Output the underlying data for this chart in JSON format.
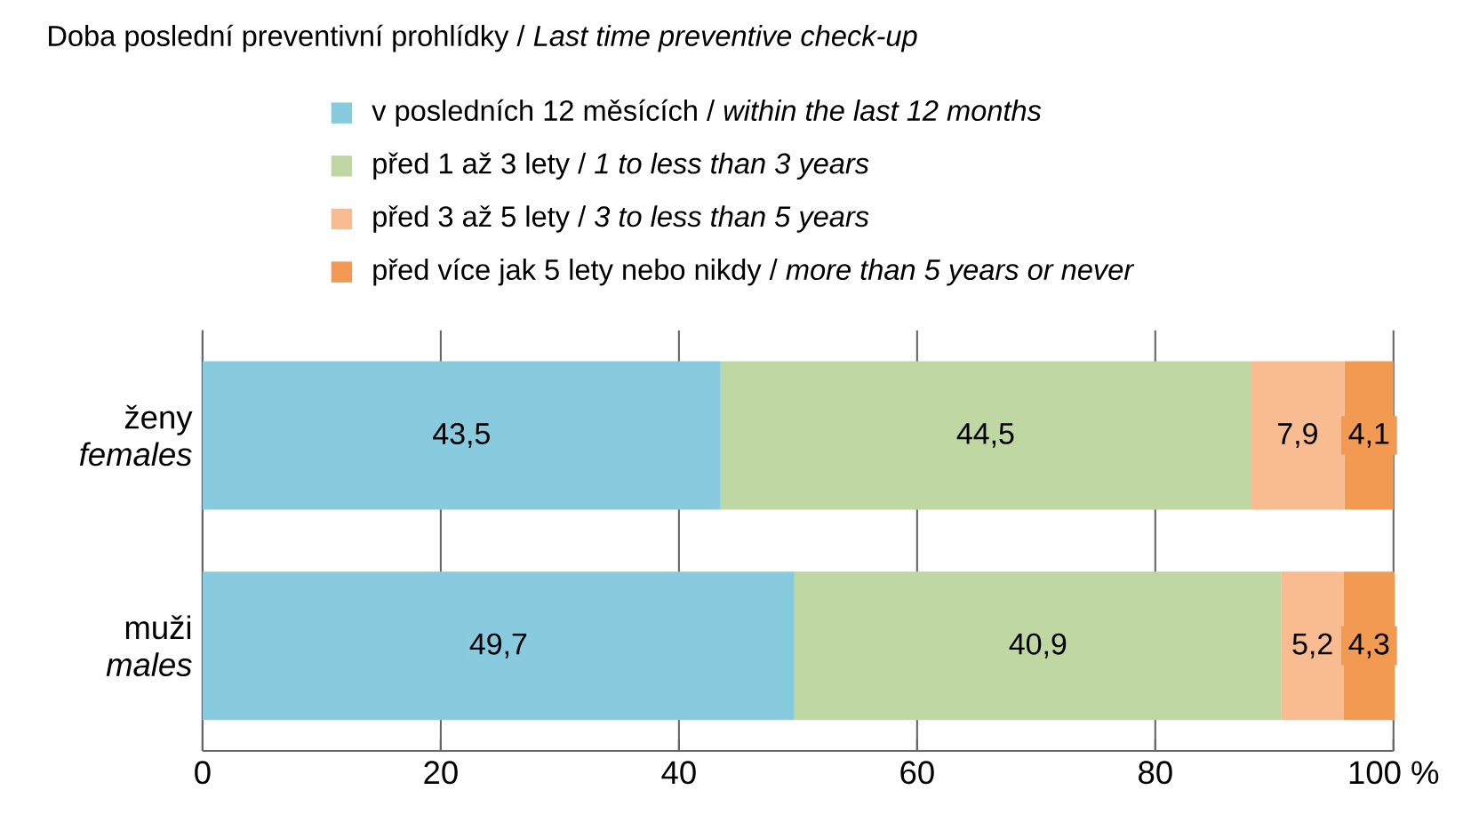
{
  "chart_data": {
    "type": "bar",
    "orientation": "horizontal",
    "stacked": true,
    "title": "Doba poslední preventivní prohlídky / *Last time preventive check-up*",
    "categories": [
      "ženy *females*",
      "muži *males*"
    ],
    "series": [
      {
        "name": "v posledních 12 měsících / *within the last 12 months*",
        "color": "#88cbdf",
        "values": [
          43.5,
          49.7
        ],
        "value_labels": [
          "43,5",
          "49,7"
        ]
      },
      {
        "name": "před 1 až 3 lety / *1 to less than 3 years*",
        "color": "#bfd7a2",
        "values": [
          44.5,
          40.9
        ],
        "value_labels": [
          "44,5",
          "40,9"
        ]
      },
      {
        "name": "před 3 až 5 lety / *3 to less than 5 years*",
        "color": "#f9bc91",
        "values": [
          7.9,
          5.2
        ],
        "value_labels": [
          "7,9",
          "5,2"
        ]
      },
      {
        "name": "před více jak 5 lety nebo nikdy / *more than 5 years or never*",
        "color": "#f39a52",
        "values": [
          4.1,
          4.3
        ],
        "value_labels": [
          "4,1",
          "4,3"
        ]
      }
    ],
    "xlim": [
      0,
      100
    ],
    "xticks": [
      0,
      20,
      40,
      60,
      80,
      {
        "value": 100,
        "label": "100 %"
      }
    ],
    "grid": "x",
    "legend": "top"
  }
}
